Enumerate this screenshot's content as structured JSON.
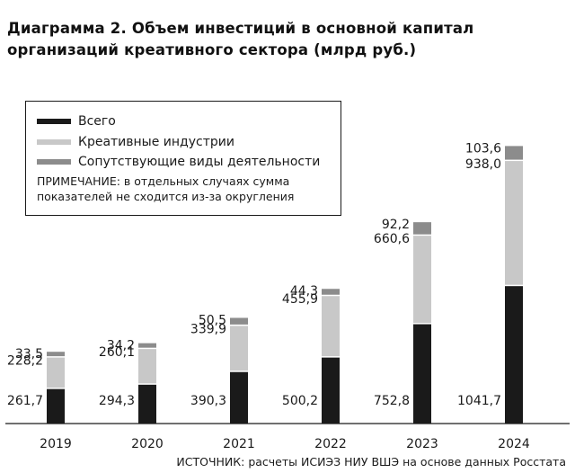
{
  "chart_data": {
    "type": "bar",
    "stacked": true,
    "title": "Диаграмма 2. Объем инвестиций в основной капитал организаций креативного сектора (млрд руб.)",
    "title_lines": [
      "Диаграмма 2. Объем инвестиций в основной капитал",
      "организаций креативного сектора (млрд руб.)"
    ],
    "categories": [
      "2019",
      "2020",
      "2021",
      "2022",
      "2023",
      "2024"
    ],
    "series": [
      {
        "name": "Всего",
        "color": "#1a1a1a",
        "values": [
          261.7,
          294.3,
          390.3,
          500.2,
          752.8,
          1041.7
        ],
        "labels": [
          "261,7",
          "294,3",
          "390,3",
          "500,2",
          "752,8",
          "1041,7"
        ]
      },
      {
        "name": "Креативные индустрии",
        "color": "#c8c8c8",
        "values": [
          228.2,
          260.1,
          339.9,
          455.9,
          660.6,
          938.0
        ],
        "labels": [
          "228,2",
          "260,1",
          "339,9",
          "455,9",
          "660,6",
          "938,0"
        ]
      },
      {
        "name": "Сопутствующие виды деятельности",
        "color": "#8c8c8c",
        "values": [
          33.5,
          34.2,
          50.5,
          44.3,
          92.2,
          103.6
        ],
        "labels": [
          "33,5",
          "34,2",
          "50,5",
          "44,3",
          "92,2",
          "103,6"
        ]
      }
    ],
    "note": "ПРИМЕЧАНИЕ: в отдельных случаях сумма показателей не сходится из-за округления",
    "note_lines": [
      "ПРИМЕЧАНИЕ: в отдельных случаях сумма",
      "показателей не сходится из-за округления"
    ],
    "source": "ИСТОЧНИК: расчеты ИСИЭЗ НИУ ВШЭ на основе данных Росстата",
    "legend_position": "top-left",
    "grid": false
  }
}
